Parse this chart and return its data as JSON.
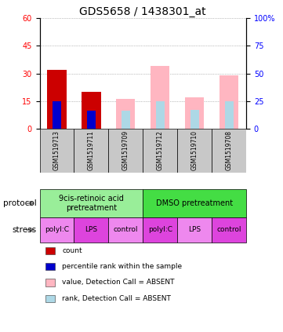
{
  "title": "GDS5658 / 1438301_at",
  "samples": [
    "GSM1519713",
    "GSM1519711",
    "GSM1519709",
    "GSM1519712",
    "GSM1519710",
    "GSM1519708"
  ],
  "count_values": [
    32,
    20,
    0,
    0,
    0,
    0
  ],
  "rank_values": [
    25,
    16,
    0,
    0,
    0,
    0
  ],
  "absent_value_values": [
    0,
    0,
    16,
    34,
    17,
    29
  ],
  "absent_rank_values": [
    0,
    0,
    16,
    25,
    17,
    25
  ],
  "left_ylim": [
    0,
    60
  ],
  "right_ylim": [
    0,
    100
  ],
  "left_yticks": [
    0,
    15,
    30,
    45,
    60
  ],
  "right_yticks": [
    0,
    25,
    50,
    75,
    100
  ],
  "right_yticklabels": [
    "0",
    "25",
    "50",
    "75",
    "100%"
  ],
  "protocol_groups": [
    {
      "label": "9cis-retinoic acid\npretreatment",
      "start": 0,
      "end": 3,
      "color": "#99ee99"
    },
    {
      "label": "DMSO pretreatment",
      "start": 3,
      "end": 6,
      "color": "#44dd44"
    }
  ],
  "stress_colors_alt": [
    "#ee88ee",
    "#cc44cc",
    "#ee88ee",
    "#cc44cc",
    "#ee88ee",
    "#cc44cc"
  ],
  "stress_labels": [
    "polyI:C",
    "LPS",
    "control",
    "polyI:C",
    "LPS",
    "control"
  ],
  "legend_items": [
    {
      "label": "count",
      "color": "#cc0000"
    },
    {
      "label": "percentile rank within the sample",
      "color": "#0000cc"
    },
    {
      "label": "value, Detection Call = ABSENT",
      "color": "#ffb6c1"
    },
    {
      "label": "rank, Detection Call = ABSENT",
      "color": "#add8e6"
    }
  ],
  "bar_width": 0.55,
  "rank_bar_width": 0.25,
  "count_color": "#cc0000",
  "rank_color": "#0000cc",
  "absent_value_color": "#ffb6c1",
  "absent_rank_color": "#add8e6",
  "sample_box_color": "#c8c8c8",
  "title_fontsize": 10,
  "tick_fontsize": 7,
  "sample_fontsize": 5.5,
  "label_fontsize": 7.5,
  "protocol_fontsize": 7,
  "stress_fontsize": 6.5,
  "legend_fontsize": 6.5
}
